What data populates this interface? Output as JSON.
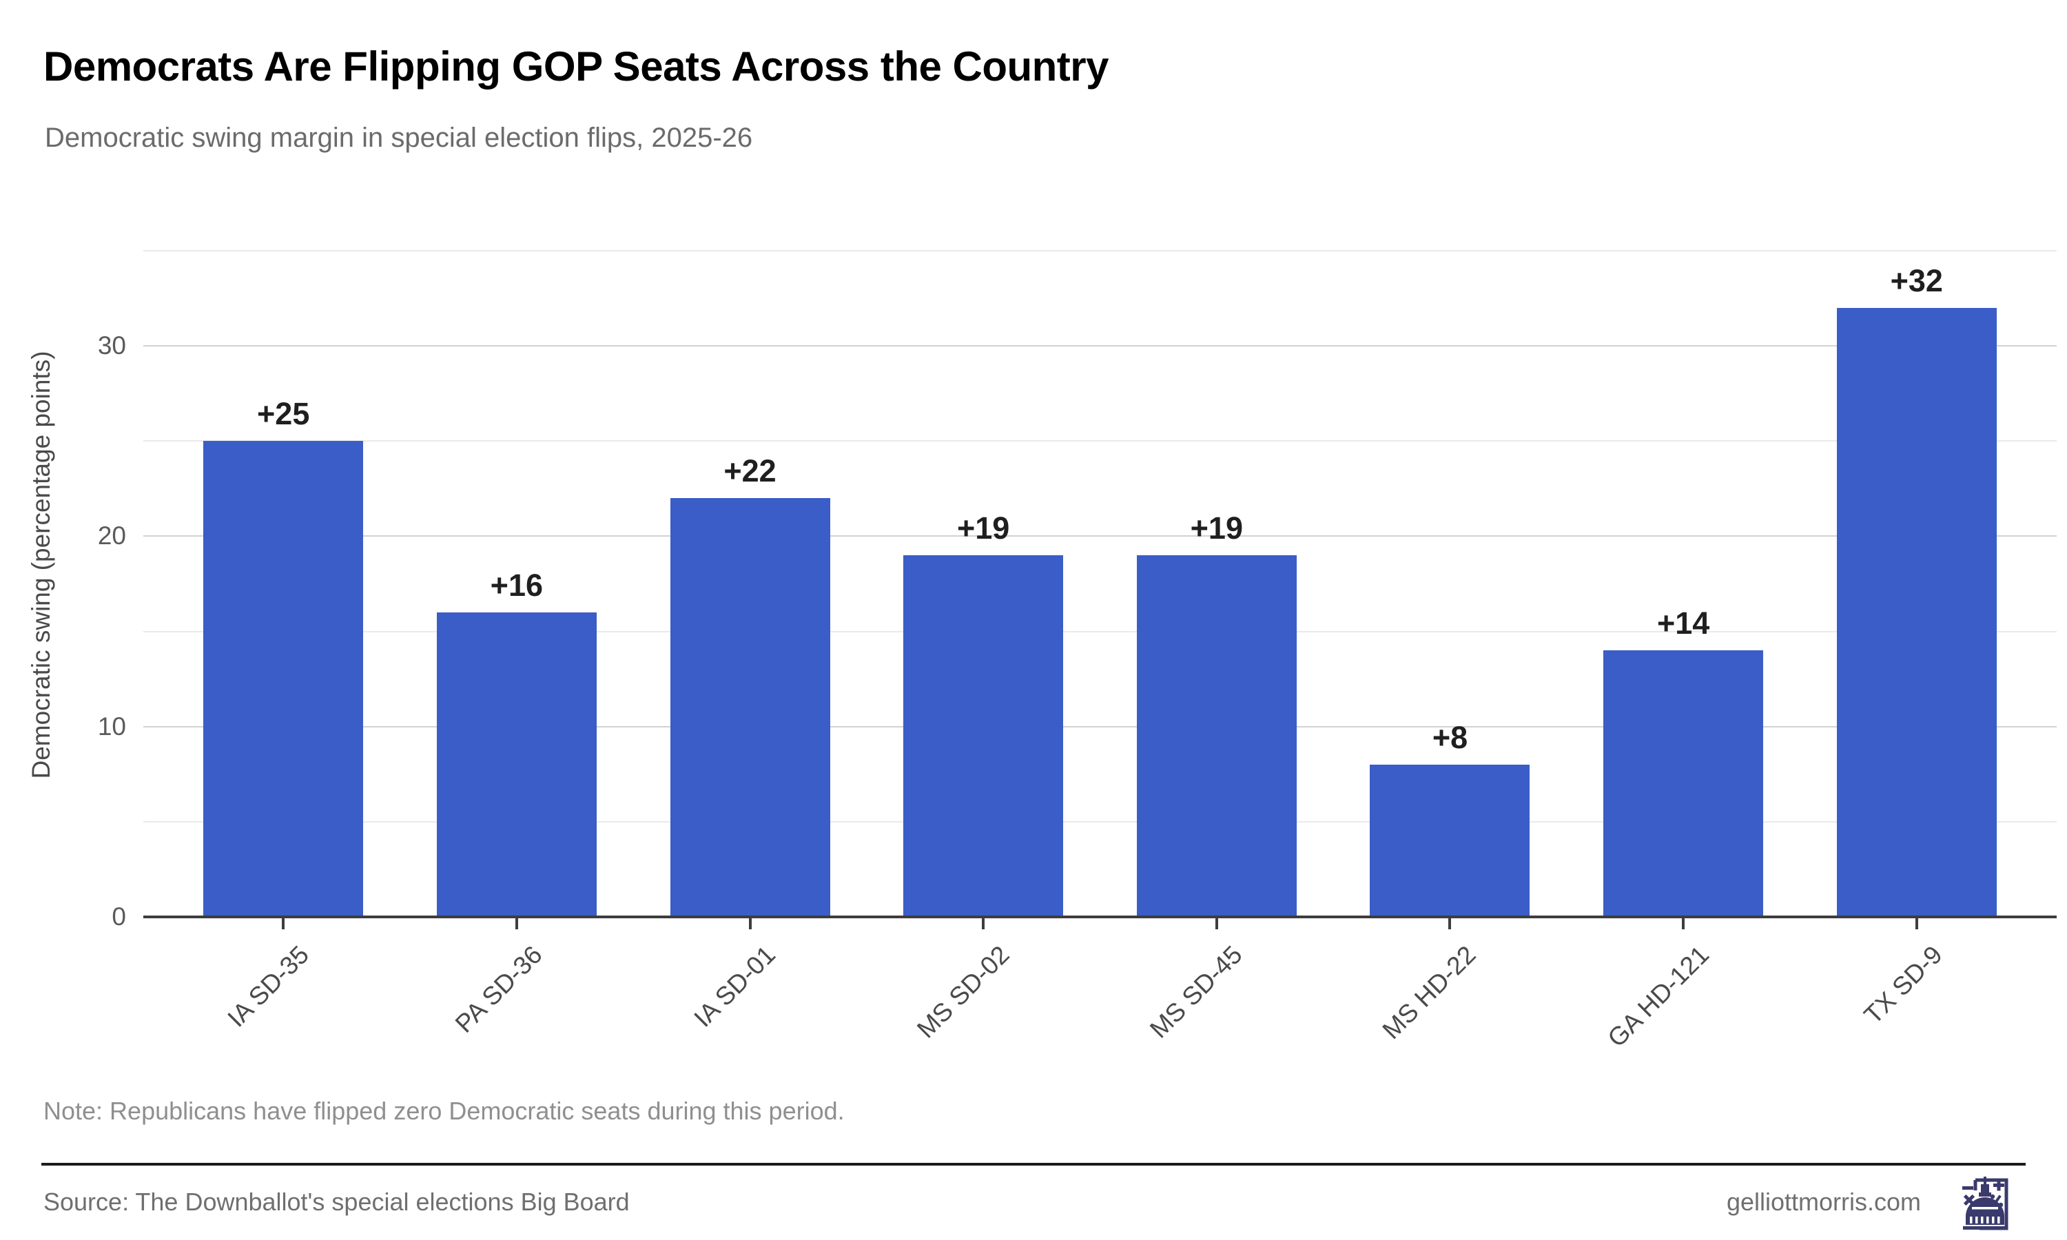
{
  "header": {
    "title": "Democrats Are Flipping GOP Seats Across the Country",
    "subtitle": "Democratic swing margin in special election flips, 2025-26"
  },
  "chart_data": {
    "type": "bar",
    "title": "Democrats Are Flipping GOP Seats Across the Country",
    "subtitle": "Democratic swing margin in special election flips, 2025-26",
    "categories": [
      "IA SD-35",
      "PA SD-36",
      "IA SD-01",
      "MS SD-02",
      "MS SD-45",
      "MS HD-22",
      "GA HD-121",
      "TX SD-9"
    ],
    "values": [
      25,
      16,
      22,
      19,
      19,
      8,
      14,
      32
    ],
    "bar_labels": [
      "+25",
      "+16",
      "+22",
      "+19",
      "+19",
      "+8",
      "+14",
      "+32"
    ],
    "xlabel": "",
    "ylabel": "Democratic swing (percentage points)",
    "ylim": [
      0,
      35.3
    ],
    "y_ticks": [
      0,
      10,
      20,
      30
    ],
    "minor_gridlines": [
      5,
      15,
      25,
      35
    ],
    "major_gridlines": [
      10,
      20,
      30
    ],
    "grid": "horizontal",
    "legend": "none",
    "bar_color": "#3a5dc7"
  },
  "note": {
    "text": "Note: Republicans have flipped zero Democratic seats during this period."
  },
  "footer": {
    "source": "Source: The Downballot's special elections Big Board",
    "site": "gelliottmorris.com",
    "logo": "capitol-math-logo"
  },
  "colors": {
    "bar": "#3a5dc7",
    "logo_navy": "#3a3a6d",
    "axis": "#3d3d3d",
    "major_grid": "#d2d2d2",
    "minor_grid": "#eaeaea"
  }
}
